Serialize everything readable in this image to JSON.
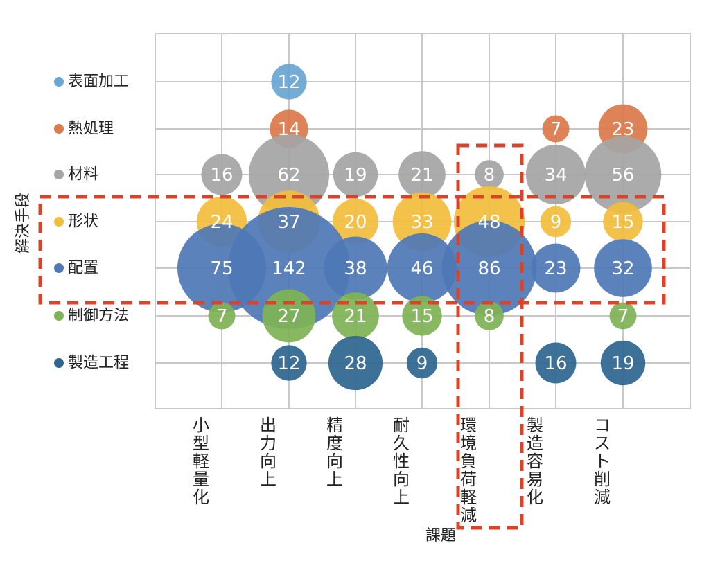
{
  "chart_data": {
    "type": "bubble",
    "x_axis_title": "課題",
    "y_axis_title": "解決手段",
    "x_categories": [
      "小型軽量化",
      "出力向上",
      "精度向上",
      "耐久性向上",
      "環境負荷軽減",
      "製造容易化",
      "コスト削減"
    ],
    "y_categories": [
      "表面加工",
      "熱処理",
      "材料",
      "形状",
      "配置",
      "制御方法",
      "製造工程"
    ],
    "series": [
      {
        "name": "表面加工",
        "color": "#6aa6d3",
        "values": [
          null,
          12,
          null,
          null,
          null,
          null,
          null
        ]
      },
      {
        "name": "熱処理",
        "color": "#dc7a4a",
        "values": [
          null,
          14,
          null,
          null,
          null,
          7,
          23
        ]
      },
      {
        "name": "材料",
        "color": "#a5a5a5",
        "values": [
          16,
          62,
          19,
          21,
          8,
          34,
          56
        ]
      },
      {
        "name": "形状",
        "color": "#f2bd3c",
        "values": [
          24,
          37,
          20,
          33,
          48,
          9,
          15
        ]
      },
      {
        "name": "配置",
        "color": "#4f78b6",
        "values": [
          75,
          142,
          38,
          46,
          86,
          23,
          32
        ]
      },
      {
        "name": "制御方法",
        "color": "#7fb456",
        "values": [
          7,
          27,
          21,
          15,
          8,
          null,
          7
        ]
      },
      {
        "name": "製造工程",
        "color": "#2f6690",
        "values": [
          null,
          12,
          28,
          9,
          null,
          16,
          19
        ]
      }
    ],
    "highlights": [
      {
        "type": "row",
        "categories": [
          "形状",
          "配置"
        ],
        "color": "#d9432a",
        "style": "dashed"
      },
      {
        "type": "column",
        "category": "環境負荷軽減",
        "color": "#d9432a",
        "style": "dashed"
      }
    ],
    "grid": true,
    "legend": "left, inline with rows"
  }
}
